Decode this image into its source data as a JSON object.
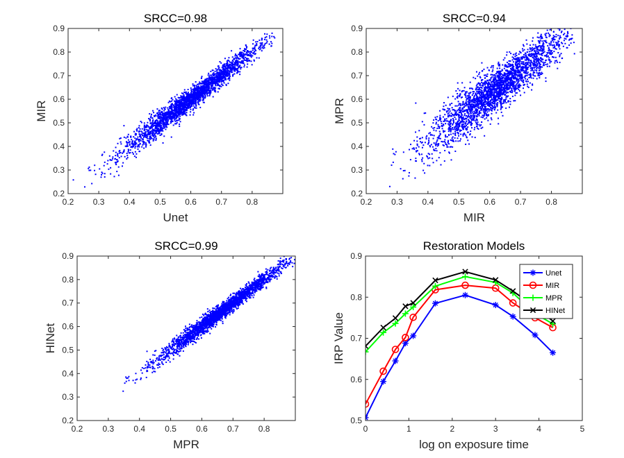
{
  "chart_data": [
    {
      "type": "scatter",
      "title": "SRCC=0.98",
      "xlabel": "Unet",
      "ylabel": "MIR",
      "xlim": [
        0.2,
        0.9
      ],
      "ylim": [
        0.2,
        0.9
      ],
      "xticks": [
        "0.2",
        "0.3",
        "0.4",
        "0.5",
        "0.6",
        "0.7",
        "0.8"
      ],
      "yticks": [
        "0.2",
        "0.3",
        "0.4",
        "0.5",
        "0.6",
        "0.7",
        "0.8",
        "0.9"
      ],
      "marker_color": "#0000ff",
      "trend": {
        "slope": 1.0,
        "intercept": 0.0,
        "spread": 0.022
      },
      "x_range": [
        0.2,
        0.88
      ],
      "x_center": 0.6,
      "x_sd": 0.11
    },
    {
      "type": "scatter",
      "title": "SRCC=0.94",
      "xlabel": "MIR",
      "ylabel": "MPR",
      "xlim": [
        0.2,
        0.9
      ],
      "ylim": [
        0.2,
        0.9
      ],
      "xticks": [
        "0.2",
        "0.3",
        "0.4",
        "0.5",
        "0.6",
        "0.7",
        "0.8"
      ],
      "yticks": [
        "0.2",
        "0.3",
        "0.4",
        "0.5",
        "0.6",
        "0.7",
        "0.8",
        "0.9"
      ],
      "marker_color": "#0000ff",
      "trend": {
        "slope": 1.0,
        "intercept": 0.02,
        "spread": 0.045
      },
      "x_range": [
        0.2,
        0.88
      ],
      "x_center": 0.62,
      "x_sd": 0.11
    },
    {
      "type": "scatter",
      "title": "SRCC=0.99",
      "xlabel": "MPR",
      "ylabel": "HINet",
      "xlim": [
        0.2,
        0.9
      ],
      "ylim": [
        0.2,
        0.9
      ],
      "xticks": [
        "0.2",
        "0.3",
        "0.4",
        "0.5",
        "0.6",
        "0.7",
        "0.8"
      ],
      "yticks": [
        "0.2",
        "0.3",
        "0.4",
        "0.5",
        "0.6",
        "0.7",
        "0.8",
        "0.9"
      ],
      "marker_color": "#0000ff",
      "trend": {
        "slope": 1.0,
        "intercept": 0.0,
        "spread": 0.016
      },
      "x_range": [
        0.23,
        0.9
      ],
      "x_center": 0.66,
      "x_sd": 0.1
    },
    {
      "type": "line",
      "title": "Restoration Models",
      "xlabel": "log on exposure time",
      "ylabel": "IRP Value",
      "xlim": [
        0,
        5
      ],
      "ylim": [
        0.5,
        0.9
      ],
      "xticks": [
        "0",
        "1",
        "2",
        "3",
        "4",
        "5"
      ],
      "yticks": [
        "0.5",
        "0.6",
        "0.7",
        "0.8",
        "0.9"
      ],
      "legend_position": "top-right",
      "x": [
        0,
        0.41,
        0.69,
        0.92,
        1.1,
        1.61,
        2.3,
        3.0,
        3.4,
        3.91,
        4.32
      ],
      "series": [
        {
          "name": "Unet",
          "color": "#0000ff",
          "marker": "asterisk",
          "values": [
            0.507,
            0.595,
            0.645,
            0.688,
            0.706,
            0.785,
            0.805,
            0.781,
            0.753,
            0.708,
            0.665
          ]
        },
        {
          "name": "MIR",
          "color": "#ff0000",
          "marker": "circle",
          "values": [
            0.54,
            0.62,
            0.673,
            0.702,
            0.751,
            0.818,
            0.829,
            0.822,
            0.786,
            0.75,
            0.726
          ]
        },
        {
          "name": "MPR",
          "color": "#00ff00",
          "marker": "plus",
          "values": [
            0.667,
            0.714,
            0.736,
            0.76,
            0.776,
            0.827,
            0.85,
            0.836,
            0.81,
            0.76,
            0.735
          ]
        },
        {
          "name": "HINet",
          "color": "#000000",
          "marker": "cross",
          "values": [
            0.681,
            0.726,
            0.749,
            0.778,
            0.786,
            0.841,
            0.862,
            0.842,
            0.815,
            0.776,
            0.742
          ]
        }
      ]
    }
  ]
}
